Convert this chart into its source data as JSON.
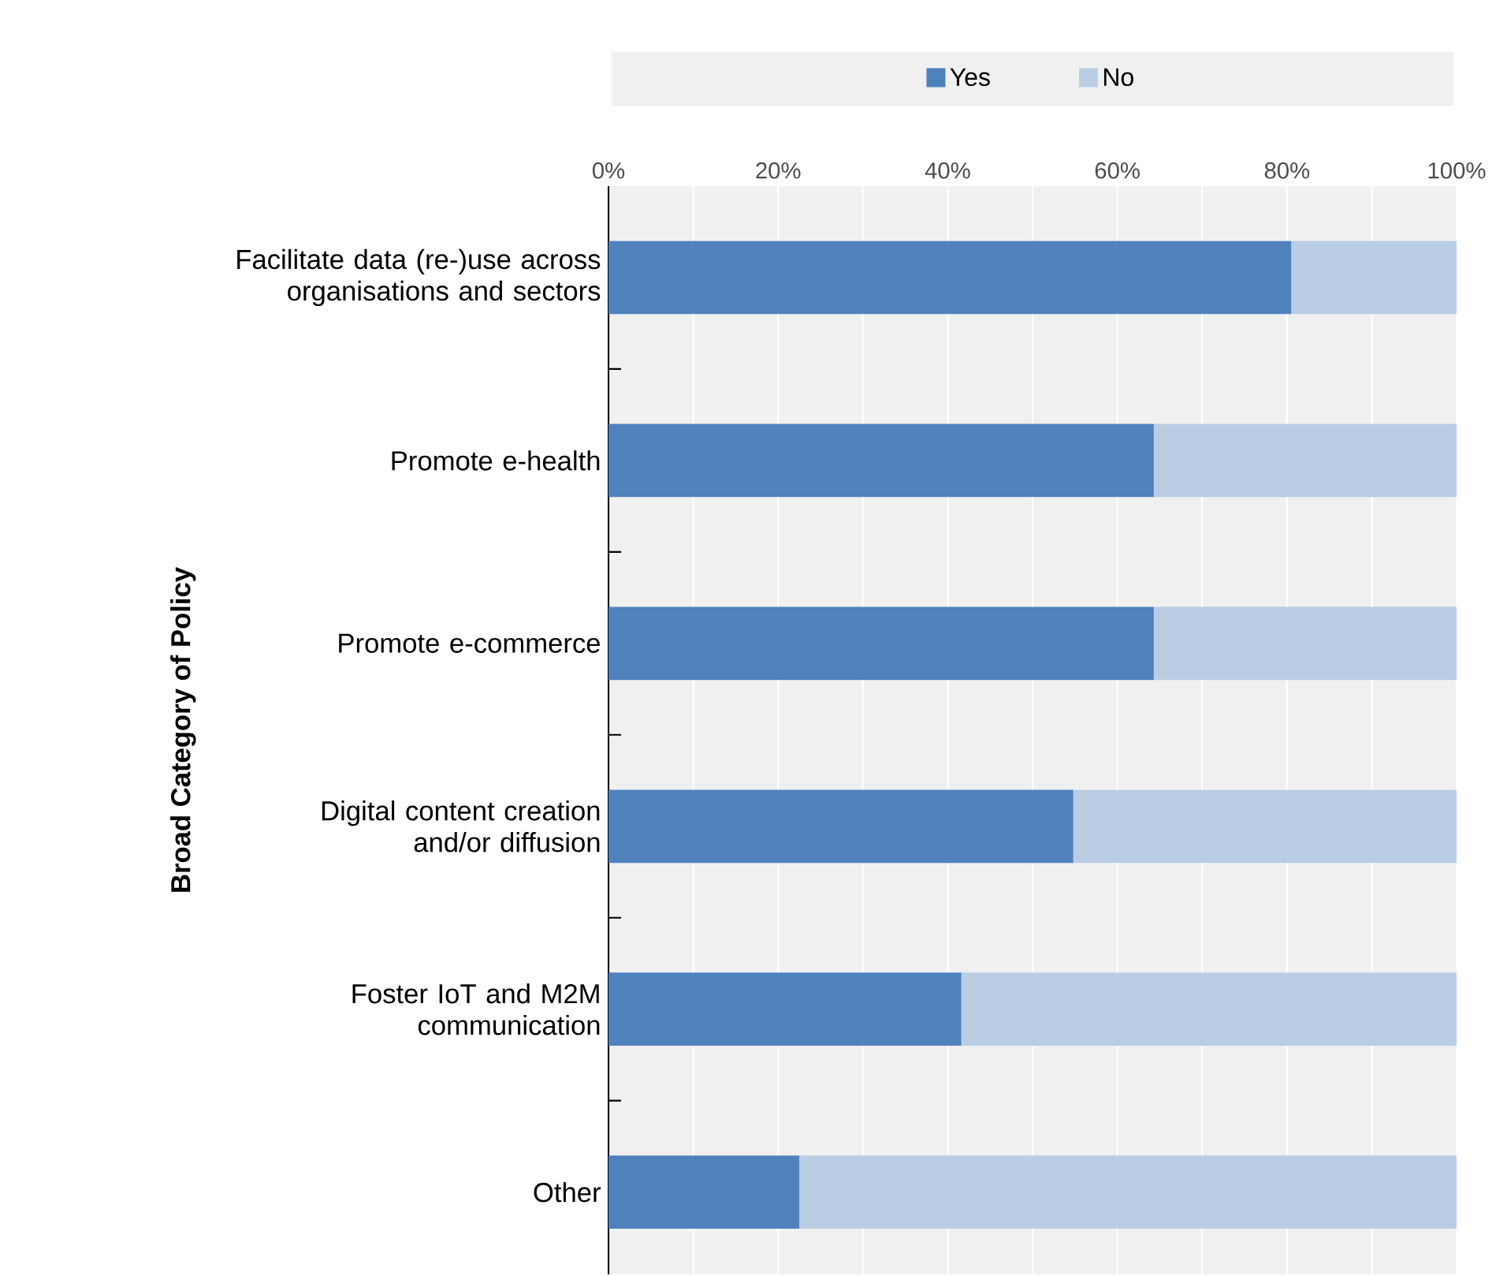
{
  "chart_data": {
    "type": "bar",
    "orientation": "horizontal",
    "stacked": true,
    "ylabel": "Broad Category of Policy",
    "categories": [
      "Facilitate data (re-)use across organisations and sectors",
      "Promote e-health",
      "Promote e-commerce",
      "Digital content creation and/or diffusion",
      "Foster IoT and M2M communication",
      "Other"
    ],
    "series": [
      {
        "name": "Yes",
        "color": "#4f81bd",
        "values": [
          80.5,
          64.3,
          64.3,
          54.8,
          41.6,
          22.5
        ]
      },
      {
        "name": "No",
        "color": "#b9cde5",
        "values": [
          19.5,
          35.7,
          35.7,
          45.2,
          58.4,
          77.5
        ]
      }
    ],
    "xlim": [
      0,
      100
    ],
    "xticks": [
      {
        "value": 0,
        "label": "0%"
      },
      {
        "value": 10,
        "label": null
      },
      {
        "value": 20,
        "label": "20%"
      },
      {
        "value": 30,
        "label": null
      },
      {
        "value": 40,
        "label": "40%"
      },
      {
        "value": 50,
        "label": null
      },
      {
        "value": 60,
        "label": "60%"
      },
      {
        "value": 70,
        "label": null
      },
      {
        "value": 80,
        "label": "80%"
      },
      {
        "value": 90,
        "label": null
      },
      {
        "value": 100,
        "label": "100%"
      }
    ],
    "grid": "x",
    "legend": "top"
  }
}
